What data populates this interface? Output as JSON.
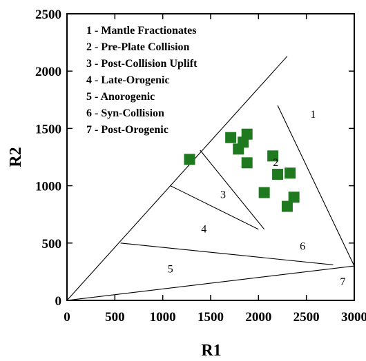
{
  "chart_data": {
    "type": "scatter",
    "title": "",
    "xlabel": "R1",
    "ylabel": "R2",
    "xlim": [
      0,
      3000
    ],
    "ylim": [
      0,
      2500
    ],
    "xticks": [
      0,
      500,
      1000,
      1500,
      2000,
      2500,
      3000
    ],
    "yticks": [
      0,
      500,
      1000,
      1500,
      2000,
      2500
    ],
    "xtick_labels": [
      "0",
      "500",
      "1000",
      "1500",
      "2000",
      "2500",
      "3000"
    ],
    "ytick_labels": [
      "0",
      "500",
      "1000",
      "1500",
      "2000",
      "2500"
    ],
    "grid": false,
    "legend": {
      "placement": "top-left",
      "entries": [
        "1 - Mantle Fractionates",
        "2 - Pre-Plate Collision",
        "3 - Post-Collision Uplift",
        "4 - Late-Orogenic",
        "5 - Anorogenic",
        "6 - Syn-Collision",
        "7 - Post-Orogenic"
      ]
    },
    "boundaries": [
      {
        "x": [
          0,
          2300
        ],
        "y": [
          0,
          2130
        ]
      },
      {
        "x": [
          0,
          3000
        ],
        "y": [
          0,
          300
        ]
      },
      {
        "x": [
          2200,
          3000
        ],
        "y": [
          1700,
          300
        ]
      },
      {
        "x": [
          560,
          2780
        ],
        "y": [
          500,
          310
        ]
      },
      {
        "x": [
          1080,
          2000
        ],
        "y": [
          1000,
          620
        ]
      },
      {
        "x": [
          1390,
          2060
        ],
        "y": [
          1310,
          620
        ]
      }
    ],
    "regions": [
      {
        "label": "1",
        "x": 2570,
        "y": 1620
      },
      {
        "label": "2",
        "x": 2180,
        "y": 1200
      },
      {
        "label": "3",
        "x": 1630,
        "y": 920
      },
      {
        "label": "4",
        "x": 1430,
        "y": 620
      },
      {
        "label": "5",
        "x": 1080,
        "y": 270
      },
      {
        "label": "6",
        "x": 2460,
        "y": 470
      },
      {
        "label": "7",
        "x": 2880,
        "y": 160
      }
    ],
    "series": [
      {
        "marker": "square",
        "color": "#1f7a1f",
        "points": [
          {
            "x": 1280,
            "y": 1230
          },
          {
            "x": 1710,
            "y": 1420
          },
          {
            "x": 1790,
            "y": 1320
          },
          {
            "x": 1840,
            "y": 1380
          },
          {
            "x": 1880,
            "y": 1450
          },
          {
            "x": 1880,
            "y": 1200
          },
          {
            "x": 2060,
            "y": 940
          },
          {
            "x": 2150,
            "y": 1260
          },
          {
            "x": 2200,
            "y": 1100
          },
          {
            "x": 2300,
            "y": 820
          },
          {
            "x": 2330,
            "y": 1110
          },
          {
            "x": 2370,
            "y": 900
          }
        ]
      }
    ]
  }
}
